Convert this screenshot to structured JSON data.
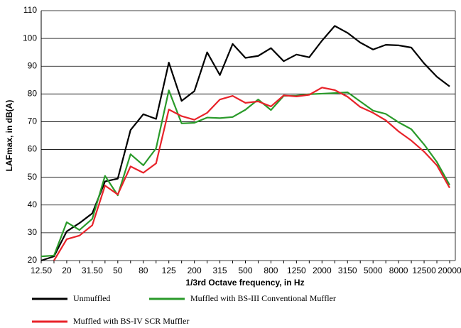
{
  "chart_data": {
    "type": "line",
    "xlabel": "1/3rd Octave frequency, in Hz",
    "ylabel": "LAFmax, in dB(A)",
    "categories": [
      "12.50",
      null,
      "20",
      null,
      "31.50",
      null,
      "50",
      null,
      "80",
      null,
      "125",
      null,
      "200",
      null,
      "315",
      null,
      "500",
      null,
      "800",
      null,
      "1250",
      null,
      "2000",
      null,
      "3150",
      null,
      "5000",
      null,
      "8000",
      null,
      "12500",
      null,
      "20000"
    ],
    "series": [
      {
        "name": "Unmuffled",
        "color": "#000000",
        "values": [
          20,
          21.5,
          30.5,
          33.5,
          37,
          48.5,
          49.5,
          67,
          72.7,
          71,
          91.3,
          77.5,
          81,
          95,
          86.8,
          98,
          93,
          93.7,
          96.5,
          91.8,
          94.2,
          93.2,
          99.2,
          104.5,
          102,
          98.5,
          96,
          97.7,
          97.5,
          96.7,
          91,
          86.2,
          82.7
        ]
      },
      {
        "name": "Muffled with BS-III Conventional Muffler",
        "color": "#2a9a2a",
        "values": [
          21.5,
          21.8,
          33.8,
          31,
          35,
          50.5,
          43.5,
          58.3,
          54.3,
          60.4,
          81.3,
          69.4,
          69.6,
          71.5,
          71.3,
          71.7,
          74.3,
          78,
          74.2,
          79.3,
          79.4,
          79.9,
          80.1,
          80.3,
          80.6,
          77.3,
          74,
          72.8,
          69.8,
          67.3,
          61.8,
          55.5,
          47.2
        ]
      },
      {
        "name": "Muffled with BS-IV SCR Muffler",
        "color": "#e8232a",
        "values": [
          null,
          20,
          27.7,
          29,
          32.7,
          47,
          43.8,
          53.9,
          51.6,
          55,
          74.4,
          72,
          70.7,
          73.2,
          78,
          79.3,
          76.8,
          77.3,
          75.5,
          79.5,
          79.1,
          79.7,
          82.3,
          81.4,
          79,
          75.3,
          73.2,
          70.5,
          66.5,
          63.2,
          59.2,
          54.3,
          46.2
        ]
      }
    ],
    "ylim": [
      20,
      110
    ],
    "yticks": [
      20,
      30,
      40,
      50,
      60,
      70,
      80,
      90,
      100,
      110
    ],
    "grid": true
  }
}
